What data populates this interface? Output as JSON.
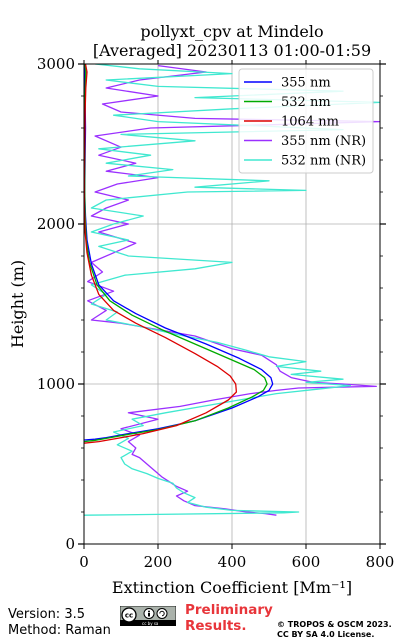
{
  "title_line1": "pollyxt_cpv at Mindelo",
  "title_line2": "[Averaged] 20230113 01:00-01:59",
  "footer": {
    "version": "Version: 3.5",
    "method": "Method: Raman",
    "preliminary": [
      "Preliminary",
      "Results."
    ],
    "copyright": [
      "© TROPOS & OSCM 2023.",
      "CC BY SA 4.0 License."
    ],
    "license_badge": "cc by sa"
  },
  "chart_data": {
    "type": "line",
    "xlabel": "Extinction Coefficient [Mm⁻¹]",
    "ylabel": "Height (m)",
    "xlim": [
      0,
      800
    ],
    "ylim": [
      0,
      3000
    ],
    "xticks": [
      0,
      200,
      400,
      600,
      800
    ],
    "yticks": [
      0,
      1000,
      2000,
      3000
    ],
    "grid": true,
    "legend_position": "top-right",
    "series": [
      {
        "name": "355 nm",
        "color": "#0000ff",
        "points": [
          [
            0,
            650
          ],
          [
            30,
            655
          ],
          [
            60,
            665
          ],
          [
            120,
            690
          ],
          [
            200,
            720
          ],
          [
            300,
            770
          ],
          [
            400,
            850
          ],
          [
            470,
            920
          ],
          [
            500,
            960
          ],
          [
            510,
            1000
          ],
          [
            505,
            1040
          ],
          [
            480,
            1090
          ],
          [
            420,
            1160
          ],
          [
            330,
            1250
          ],
          [
            220,
            1350
          ],
          [
            140,
            1440
          ],
          [
            80,
            1520
          ],
          [
            40,
            1620
          ],
          [
            20,
            1750
          ],
          [
            8,
            1900
          ],
          [
            4,
            2050
          ],
          [
            2,
            2200
          ],
          [
            3,
            2400
          ],
          [
            4,
            2600
          ],
          [
            3,
            2800
          ],
          [
            2,
            3000
          ]
        ]
      },
      {
        "name": "532 nm",
        "color": "#00aa00",
        "points": [
          [
            0,
            640
          ],
          [
            30,
            648
          ],
          [
            60,
            660
          ],
          [
            120,
            685
          ],
          [
            200,
            715
          ],
          [
            300,
            770
          ],
          [
            390,
            850
          ],
          [
            455,
            920
          ],
          [
            485,
            960
          ],
          [
            495,
            1000
          ],
          [
            488,
            1040
          ],
          [
            460,
            1090
          ],
          [
            400,
            1150
          ],
          [
            310,
            1240
          ],
          [
            210,
            1340
          ],
          [
            130,
            1430
          ],
          [
            70,
            1520
          ],
          [
            35,
            1620
          ],
          [
            15,
            1760
          ],
          [
            6,
            1900
          ],
          [
            3,
            2050
          ],
          [
            2,
            2200
          ],
          [
            2,
            2400
          ],
          [
            2,
            2600
          ],
          [
            3,
            2800
          ],
          [
            5,
            2950
          ],
          [
            3,
            3000
          ]
        ]
      },
      {
        "name": "1064 nm",
        "color": "#dd0000",
        "points": [
          [
            0,
            630
          ],
          [
            40,
            640
          ],
          [
            90,
            660
          ],
          [
            160,
            690
          ],
          [
            250,
            740
          ],
          [
            330,
            820
          ],
          [
            390,
            900
          ],
          [
            412,
            950
          ],
          [
            410,
            1000
          ],
          [
            395,
            1050
          ],
          [
            360,
            1110
          ],
          [
            300,
            1190
          ],
          [
            220,
            1290
          ],
          [
            140,
            1380
          ],
          [
            80,
            1460
          ],
          [
            40,
            1560
          ],
          [
            20,
            1680
          ],
          [
            8,
            1820
          ],
          [
            3,
            1950
          ],
          [
            1,
            2100
          ],
          [
            1,
            2300
          ],
          [
            2,
            2500
          ],
          [
            3,
            2700
          ],
          [
            5,
            2850
          ],
          [
            8,
            2950
          ],
          [
            4,
            3000
          ]
        ]
      },
      {
        "name": "355 nm (NR)",
        "color": "#9b30ff",
        "points": [
          [
            520,
            180
          ],
          [
            490,
            190
          ],
          [
            440,
            200
          ],
          [
            380,
            220
          ],
          [
            300,
            240
          ],
          [
            270,
            270
          ],
          [
            250,
            300
          ],
          [
            280,
            330
          ],
          [
            250,
            360
          ],
          [
            230,
            390
          ],
          [
            210,
            420
          ],
          [
            190,
            460
          ],
          [
            170,
            500
          ],
          [
            150,
            540
          ],
          [
            130,
            560
          ],
          [
            140,
            600
          ],
          [
            120,
            640
          ],
          [
            150,
            680
          ],
          [
            100,
            720
          ],
          [
            200,
            780
          ],
          [
            120,
            820
          ],
          [
            260,
            860
          ],
          [
            350,
            900
          ],
          [
            450,
            940
          ],
          [
            520,
            960
          ],
          [
            580,
            975
          ],
          [
            680,
            980
          ],
          [
            790,
            985
          ],
          [
            700,
            1000
          ],
          [
            620,
            1010
          ],
          [
            560,
            1040
          ],
          [
            530,
            1080
          ],
          [
            520,
            1120
          ],
          [
            480,
            1180
          ],
          [
            400,
            1220
          ],
          [
            300,
            1300
          ],
          [
            200,
            1340
          ],
          [
            100,
            1380
          ],
          [
            20,
            1400
          ],
          [
            60,
            1460
          ],
          [
            10,
            1520
          ],
          [
            80,
            1580
          ],
          [
            10,
            1640
          ],
          [
            50,
            1700
          ],
          [
            20,
            1760
          ],
          [
            80,
            1820
          ],
          [
            140,
            1880
          ],
          [
            40,
            1950
          ],
          [
            120,
            2000
          ],
          [
            20,
            2050
          ],
          [
            60,
            2100
          ],
          [
            120,
            2150
          ],
          [
            30,
            2200
          ],
          [
            90,
            2250
          ],
          [
            200,
            2290
          ],
          [
            60,
            2330
          ],
          [
            140,
            2380
          ],
          [
            40,
            2430
          ],
          [
            100,
            2480
          ],
          [
            30,
            2550
          ],
          [
            180,
            2600
          ],
          [
            500,
            2620
          ],
          [
            800,
            2640
          ],
          [
            300,
            2660
          ],
          [
            100,
            2700
          ],
          [
            50,
            2750
          ],
          [
            200,
            2800
          ],
          [
            60,
            2850
          ],
          [
            150,
            2900
          ],
          [
            330,
            2950
          ],
          [
            200,
            2990
          ]
        ]
      },
      {
        "name": "532 nm (NR)",
        "color": "#40e8d0",
        "points": [
          [
            0,
            180
          ],
          [
            200,
            185
          ],
          [
            540,
            195
          ],
          [
            580,
            200
          ],
          [
            400,
            210
          ],
          [
            330,
            230
          ],
          [
            280,
            260
          ],
          [
            300,
            290
          ],
          [
            270,
            320
          ],
          [
            250,
            350
          ],
          [
            240,
            380
          ],
          [
            200,
            410
          ],
          [
            170,
            440
          ],
          [
            130,
            470
          ],
          [
            110,
            500
          ],
          [
            100,
            540
          ],
          [
            130,
            580
          ],
          [
            90,
            620
          ],
          [
            120,
            660
          ],
          [
            80,
            700
          ],
          [
            160,
            740
          ],
          [
            130,
            780
          ],
          [
            220,
            820
          ],
          [
            320,
            860
          ],
          [
            420,
            900
          ],
          [
            520,
            940
          ],
          [
            640,
            970
          ],
          [
            720,
            990
          ],
          [
            600,
            1010
          ],
          [
            700,
            1030
          ],
          [
            560,
            1060
          ],
          [
            640,
            1080
          ],
          [
            520,
            1110
          ],
          [
            600,
            1140
          ],
          [
            500,
            1170
          ],
          [
            440,
            1210
          ],
          [
            360,
            1260
          ],
          [
            250,
            1310
          ],
          [
            150,
            1360
          ],
          [
            60,
            1400
          ],
          [
            90,
            1450
          ],
          [
            20,
            1500
          ],
          [
            60,
            1560
          ],
          [
            20,
            1620
          ],
          [
            110,
            1680
          ],
          [
            300,
            1720
          ],
          [
            400,
            1760
          ],
          [
            120,
            1800
          ],
          [
            40,
            1860
          ],
          [
            120,
            1900
          ],
          [
            20,
            1950
          ],
          [
            80,
            2000
          ],
          [
            160,
            2050
          ],
          [
            20,
            2100
          ],
          [
            60,
            2150
          ],
          [
            280,
            2200
          ],
          [
            600,
            2210
          ],
          [
            300,
            2230
          ],
          [
            500,
            2270
          ],
          [
            120,
            2300
          ],
          [
            240,
            2340
          ],
          [
            60,
            2380
          ],
          [
            180,
            2430
          ],
          [
            40,
            2470
          ],
          [
            300,
            2520
          ],
          [
            100,
            2560
          ],
          [
            700,
            2590
          ],
          [
            200,
            2640
          ],
          [
            80,
            2680
          ],
          [
            400,
            2720
          ],
          [
            800,
            2760
          ],
          [
            300,
            2790
          ],
          [
            700,
            2830
          ],
          [
            200,
            2860
          ],
          [
            60,
            2900
          ],
          [
            400,
            2940
          ],
          [
            150,
            2970
          ],
          [
            30,
            3000
          ]
        ]
      }
    ]
  }
}
